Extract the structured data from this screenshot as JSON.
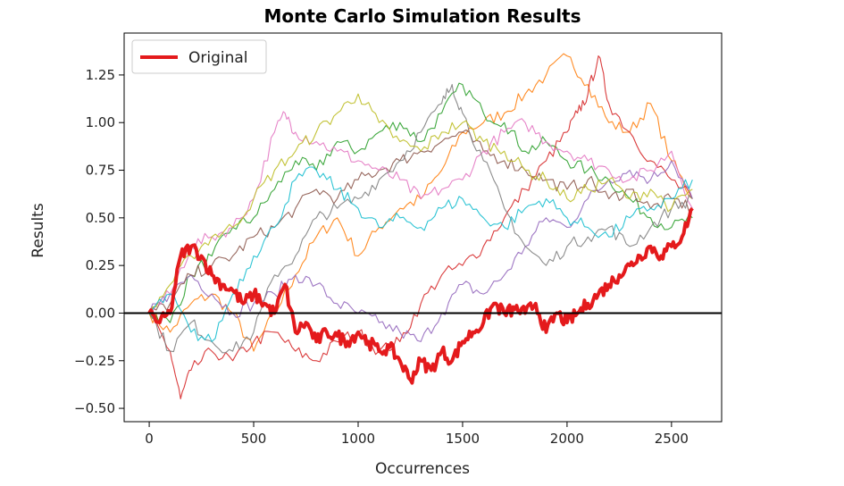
{
  "chart_data": {
    "type": "line",
    "title": "Monte Carlo Simulation Results",
    "xlabel": "Occurrences",
    "ylabel": "Results",
    "xlim": [
      -120,
      2740
    ],
    "ylim": [
      -0.57,
      1.47
    ],
    "xticks": [
      0,
      500,
      1000,
      1500,
      2000,
      2500
    ],
    "yticks": [
      -0.5,
      -0.25,
      0.0,
      0.25,
      0.5,
      0.75,
      1.0,
      1.25
    ],
    "ytick_labels": [
      "−0.50",
      "−0.25",
      "0.00",
      "0.25",
      "0.50",
      "0.75",
      "1.00",
      "1.25"
    ],
    "grid": false,
    "legend_position": "top-left",
    "reference_line": {
      "y": 0.0,
      "color": "#000000"
    },
    "series": [
      {
        "color": "#ff7f0e",
        "x": [
          0,
          100,
          200,
          300,
          400,
          500,
          600,
          700,
          800,
          900,
          1000,
          1100,
          1200,
          1300,
          1400,
          1500,
          1600,
          1700,
          1800,
          1900,
          2000,
          2100,
          2200,
          2300,
          2400,
          2500,
          2600
        ],
        "y": [
          0,
          -0.1,
          0.05,
          0.1,
          0.0,
          -0.2,
          0.0,
          0.2,
          0.4,
          0.5,
          0.3,
          0.45,
          0.55,
          0.6,
          0.75,
          0.95,
          1.0,
          1.05,
          1.15,
          1.25,
          1.35,
          1.2,
          1.0,
          0.95,
          1.1,
          0.8,
          0.6
        ]
      },
      {
        "color": "#2ca02c",
        "x": [
          0,
          100,
          200,
          300,
          400,
          500,
          600,
          700,
          800,
          900,
          1000,
          1100,
          1200,
          1300,
          1400,
          1500,
          1600,
          1700,
          1800,
          1900,
          2000,
          2100,
          2200,
          2300,
          2400,
          2500,
          2600
        ],
        "y": [
          0,
          -0.05,
          0.2,
          0.3,
          0.45,
          0.5,
          0.65,
          0.8,
          0.75,
          0.9,
          0.85,
          0.95,
          1.0,
          0.9,
          1.05,
          1.2,
          1.05,
          1.0,
          0.85,
          0.9,
          0.8,
          0.75,
          0.7,
          0.6,
          0.5,
          0.45,
          0.5
        ]
      },
      {
        "color": "#d62728",
        "x": [
          0,
          100,
          150,
          200,
          300,
          400,
          500,
          600,
          700,
          800,
          900,
          1000,
          1100,
          1200,
          1300,
          1400,
          1500,
          1600,
          1700,
          1800,
          1900,
          2000,
          2050,
          2100,
          2150,
          2200,
          2300,
          2400,
          2500,
          2600
        ],
        "y": [
          0,
          -0.2,
          -0.45,
          -0.3,
          -0.2,
          -0.25,
          -0.15,
          -0.1,
          -0.2,
          -0.25,
          -0.15,
          -0.1,
          -0.2,
          -0.15,
          0.05,
          0.2,
          0.25,
          0.35,
          0.5,
          0.65,
          0.8,
          0.95,
          1.05,
          1.15,
          1.35,
          1.1,
          0.95,
          0.8,
          0.7,
          0.6
        ]
      },
      {
        "color": "#9467bd",
        "x": [
          0,
          100,
          200,
          300,
          400,
          500,
          600,
          700,
          800,
          900,
          1000,
          1100,
          1200,
          1300,
          1400,
          1500,
          1600,
          1700,
          1800,
          1900,
          2000,
          2100,
          2200,
          2300,
          2400,
          2500,
          2600
        ],
        "y": [
          0,
          0.1,
          0.2,
          0.1,
          0.0,
          0.05,
          0.1,
          0.2,
          0.15,
          0.05,
          0.0,
          -0.05,
          -0.1,
          -0.15,
          0.0,
          0.15,
          0.1,
          0.2,
          0.35,
          0.5,
          0.45,
          0.6,
          0.7,
          0.75,
          0.7,
          0.8,
          0.6
        ]
      },
      {
        "color": "#8c564b",
        "x": [
          0,
          100,
          200,
          300,
          400,
          500,
          600,
          700,
          800,
          900,
          1000,
          1100,
          1200,
          1300,
          1400,
          1500,
          1600,
          1700,
          1800,
          1900,
          2000,
          2100,
          2200,
          2300,
          2400,
          2500,
          2600
        ],
        "y": [
          0,
          0.05,
          0.2,
          0.25,
          0.3,
          0.4,
          0.45,
          0.55,
          0.65,
          0.6,
          0.7,
          0.75,
          0.8,
          0.85,
          0.9,
          0.95,
          0.85,
          0.8,
          0.75,
          0.7,
          0.65,
          0.7,
          0.6,
          0.65,
          0.55,
          0.6,
          0.55
        ]
      },
      {
        "color": "#e377c2",
        "x": [
          0,
          100,
          200,
          300,
          400,
          500,
          600,
          650,
          700,
          800,
          900,
          1000,
          1100,
          1200,
          1300,
          1400,
          1500,
          1600,
          1700,
          1800,
          1900,
          2000,
          2100,
          2200,
          2300,
          2400,
          2500,
          2600
        ],
        "y": [
          0,
          0.1,
          0.35,
          0.4,
          0.45,
          0.6,
          0.95,
          1.05,
          0.95,
          0.9,
          0.85,
          0.8,
          0.75,
          0.7,
          0.6,
          0.65,
          0.7,
          0.85,
          0.95,
          1.0,
          0.9,
          0.85,
          0.8,
          0.75,
          0.7,
          0.75,
          0.85,
          0.55
        ]
      },
      {
        "color": "#7f7f7f",
        "x": [
          0,
          100,
          200,
          300,
          400,
          500,
          600,
          700,
          800,
          900,
          1000,
          1100,
          1200,
          1300,
          1400,
          1450,
          1500,
          1600,
          1700,
          1800,
          1900,
          2000,
          2100,
          2200,
          2300,
          2400,
          2500,
          2600
        ],
        "y": [
          0,
          -0.2,
          -0.05,
          -0.15,
          -0.2,
          -0.1,
          0.2,
          0.3,
          0.5,
          0.55,
          0.6,
          0.7,
          0.8,
          0.95,
          1.1,
          1.2,
          1.05,
          0.8,
          0.55,
          0.35,
          0.25,
          0.35,
          0.4,
          0.45,
          0.35,
          0.45,
          0.55,
          0.6
        ]
      },
      {
        "color": "#bcbd22",
        "x": [
          0,
          100,
          200,
          300,
          400,
          500,
          600,
          700,
          800,
          900,
          1000,
          1100,
          1200,
          1300,
          1400,
          1500,
          1600,
          1700,
          1800,
          1900,
          2000,
          2100,
          2200,
          2300,
          2400,
          2500,
          2600
        ],
        "y": [
          0,
          0.15,
          0.3,
          0.4,
          0.45,
          0.6,
          0.75,
          0.85,
          0.95,
          1.05,
          1.15,
          1.0,
          0.9,
          0.85,
          0.95,
          1.0,
          0.9,
          0.85,
          0.75,
          0.7,
          0.6,
          0.65,
          0.7,
          0.6,
          0.65,
          0.55,
          0.65
        ]
      },
      {
        "color": "#17becf",
        "x": [
          0,
          100,
          200,
          300,
          400,
          500,
          600,
          700,
          800,
          900,
          1000,
          1100,
          1200,
          1300,
          1400,
          1500,
          1600,
          1700,
          1800,
          1900,
          2000,
          2100,
          2200,
          2300,
          2400,
          2500,
          2600
        ],
        "y": [
          0,
          0.1,
          -0.1,
          -0.15,
          0.1,
          0.3,
          0.45,
          0.7,
          0.75,
          0.65,
          0.55,
          0.45,
          0.5,
          0.45,
          0.55,
          0.6,
          0.5,
          0.45,
          0.55,
          0.6,
          0.5,
          0.45,
          0.4,
          0.5,
          0.55,
          0.6,
          0.7
        ]
      },
      {
        "name": "Original",
        "color": "#e41a1c",
        "width": 4,
        "x": [
          0,
          50,
          100,
          150,
          200,
          250,
          300,
          350,
          400,
          450,
          500,
          550,
          600,
          650,
          700,
          750,
          800,
          850,
          900,
          950,
          1000,
          1050,
          1100,
          1150,
          1200,
          1250,
          1300,
          1350,
          1400,
          1450,
          1500,
          1550,
          1600,
          1650,
          1700,
          1750,
          1800,
          1850,
          1900,
          1950,
          2000,
          2050,
          2100,
          2150,
          2200,
          2250,
          2300,
          2350,
          2400,
          2450,
          2500,
          2550,
          2600
        ],
        "y": [
          0,
          -0.05,
          0.0,
          0.3,
          0.35,
          0.3,
          0.2,
          0.15,
          0.12,
          0.05,
          0.1,
          0.05,
          0.0,
          0.15,
          -0.1,
          -0.05,
          -0.15,
          -0.1,
          -0.12,
          -0.15,
          -0.1,
          -0.15,
          -0.2,
          -0.18,
          -0.25,
          -0.35,
          -0.25,
          -0.3,
          -0.2,
          -0.25,
          -0.15,
          -0.1,
          -0.05,
          0.05,
          0.0,
          0.02,
          0.0,
          0.05,
          -0.1,
          0.0,
          -0.05,
          0.0,
          0.05,
          0.1,
          0.15,
          0.2,
          0.25,
          0.3,
          0.35,
          0.3,
          0.35,
          0.4,
          0.55
        ]
      }
    ],
    "legend": [
      {
        "label": "Original",
        "color": "#e41a1c"
      }
    ]
  }
}
